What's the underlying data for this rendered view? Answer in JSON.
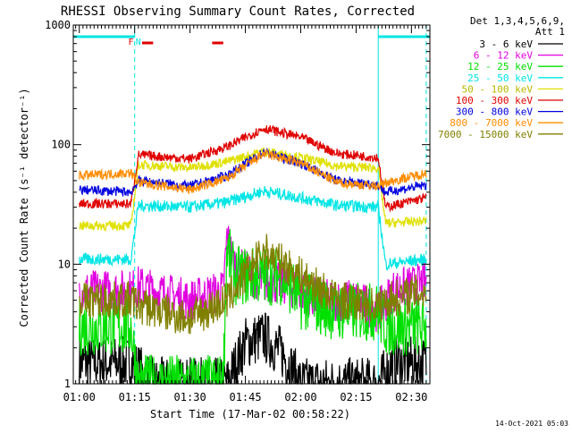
{
  "chart_data": {
    "type": "line",
    "title": "RHESSI Observing Summary Count Rates, Corrected",
    "xlabel": "Start Time (17-Mar-02 00:58:22)",
    "ylabel": "Corrected Count Rate (s⁻¹ detector⁻¹)",
    "yscale": "log",
    "ylim": [
      1,
      1000
    ],
    "xlim": [
      "00:58:22",
      "02:35:00"
    ],
    "x_ticks": [
      "01:00",
      "01:15",
      "01:30",
      "01:45",
      "02:00",
      "02:15",
      "02:30"
    ],
    "y_ticks": [
      1,
      10,
      100,
      1000
    ],
    "y_tick_labels": [
      "1",
      "10",
      "100",
      "1000"
    ],
    "legend_position": "right",
    "legend_header": [
      "Det 1,3,4,5,6,9,",
      "Att 1"
    ],
    "timestamp": "14-Oct-2021 05:03",
    "flags": {
      "night_bars": [
        [
          "00:58:22",
          "01:15:00"
        ],
        [
          "02:21:00",
          "02:35:00"
        ]
      ],
      "night_bar_color": "#00e5e5",
      "saa_bars": [
        [
          "01:17:00",
          "01:20:00"
        ],
        [
          "01:36:00",
          "01:39:00"
        ]
      ],
      "saa_bar_color": "#e00000",
      "labels": [
        {
          "text": "F",
          "time": "01:14:00",
          "color": "#e00000"
        },
        {
          "text": "N",
          "time": "01:16:00",
          "color": "#00e5e5"
        }
      ],
      "dashed_times": [
        "01:15:00",
        "02:34:00"
      ],
      "solid_times": [
        "00:58:22",
        "02:21:00"
      ]
    },
    "series": [
      {
        "name": "3 - 6 keV",
        "color": "#000000",
        "points": [
          [
            "01:00",
            1.5
          ],
          [
            "01:14",
            1.5
          ],
          [
            "01:20",
            1.0
          ],
          [
            "01:40",
            1.0
          ],
          [
            "01:45",
            2.2
          ],
          [
            "01:50",
            2.5
          ],
          [
            "01:55",
            1.8
          ],
          [
            "02:00",
            1.0
          ],
          [
            "02:21",
            1.0
          ],
          [
            "02:25",
            1.5
          ],
          [
            "02:34",
            1.5
          ]
        ]
      },
      {
        "name": "6 - 12 keV",
        "color": "#e000e0",
        "points": [
          [
            "01:00",
            6
          ],
          [
            "01:14",
            6
          ],
          [
            "01:16",
            6.5
          ],
          [
            "01:30",
            5
          ],
          [
            "01:39",
            6
          ],
          [
            "01:40",
            17
          ],
          [
            "01:42",
            10
          ],
          [
            "01:50",
            7
          ],
          [
            "01:55",
            7
          ],
          [
            "02:05",
            5
          ],
          [
            "02:15",
            5
          ],
          [
            "02:21",
            4
          ],
          [
            "02:25",
            6
          ],
          [
            "02:34",
            7
          ]
        ]
      },
      {
        "name": "12 - 25 keV",
        "color": "#00e000",
        "points": [
          [
            "01:00",
            3
          ],
          [
            "01:14",
            3
          ],
          [
            "01:16",
            1.0
          ],
          [
            "01:39",
            1.0
          ],
          [
            "01:40",
            14
          ],
          [
            "01:42",
            8
          ],
          [
            "01:48",
            8
          ],
          [
            "01:55",
            8
          ],
          [
            "02:00",
            5
          ],
          [
            "02:10",
            4
          ],
          [
            "02:21",
            4
          ],
          [
            "02:23",
            3
          ],
          [
            "02:34",
            3
          ]
        ]
      },
      {
        "name": "25 - 50 keV",
        "color": "#00e5e5",
        "points": [
          [
            "01:00",
            11
          ],
          [
            "01:14",
            11
          ],
          [
            "01:16",
            31
          ],
          [
            "01:30",
            30
          ],
          [
            "01:40",
            33
          ],
          [
            "01:50",
            41
          ],
          [
            "02:00",
            36
          ],
          [
            "02:10",
            31
          ],
          [
            "02:21",
            30
          ],
          [
            "02:23",
            10
          ],
          [
            "02:34",
            11
          ]
        ]
      },
      {
        "name": "50 - 100 keV",
        "color": "#e0e000",
        "points": [
          [
            "01:00",
            21
          ],
          [
            "01:14",
            21
          ],
          [
            "01:16",
            68
          ],
          [
            "01:30",
            64
          ],
          [
            "01:40",
            72
          ],
          [
            "01:50",
            88
          ],
          [
            "02:00",
            78
          ],
          [
            "02:10",
            66
          ],
          [
            "02:21",
            64
          ],
          [
            "02:23",
            22
          ],
          [
            "02:34",
            23
          ]
        ]
      },
      {
        "name": "100 - 300 keV",
        "color": "#e00000",
        "points": [
          [
            "01:00",
            32
          ],
          [
            "01:14",
            32
          ],
          [
            "01:16",
            82
          ],
          [
            "01:30",
            76
          ],
          [
            "01:40",
            96
          ],
          [
            "01:50",
            137
          ],
          [
            "02:00",
            115
          ],
          [
            "02:10",
            84
          ],
          [
            "02:21",
            78
          ],
          [
            "02:23",
            30
          ],
          [
            "02:34",
            36
          ]
        ]
      },
      {
        "name": "300 - 800 keV",
        "color": "#0000e0",
        "points": [
          [
            "01:00",
            42
          ],
          [
            "01:14",
            40
          ],
          [
            "01:16",
            50
          ],
          [
            "01:30",
            45
          ],
          [
            "01:40",
            55
          ],
          [
            "01:50",
            86
          ],
          [
            "02:00",
            70
          ],
          [
            "02:10",
            50
          ],
          [
            "02:21",
            46
          ],
          [
            "02:23",
            40
          ],
          [
            "02:34",
            46
          ]
        ]
      },
      {
        "name": "800 - 7000 keV",
        "color": "#ff8c00",
        "points": [
          [
            "01:00",
            55
          ],
          [
            "01:14",
            58
          ],
          [
            "01:16",
            48
          ],
          [
            "01:30",
            42
          ],
          [
            "01:40",
            52
          ],
          [
            "01:50",
            84
          ],
          [
            "02:00",
            70
          ],
          [
            "02:10",
            48
          ],
          [
            "02:21",
            45
          ],
          [
            "02:23",
            48
          ],
          [
            "02:34",
            58
          ]
        ]
      },
      {
        "name": "7000 - 15000 keV",
        "color": "#808000",
        "points": [
          [
            "01:00",
            5
          ],
          [
            "01:14",
            5
          ],
          [
            "01:16",
            4.5
          ],
          [
            "01:30",
            3.5
          ],
          [
            "01:40",
            5
          ],
          [
            "01:50",
            13
          ],
          [
            "02:00",
            8
          ],
          [
            "02:10",
            5
          ],
          [
            "02:21",
            4.5
          ],
          [
            "02:23",
            5
          ],
          [
            "02:34",
            6
          ]
        ]
      }
    ]
  }
}
